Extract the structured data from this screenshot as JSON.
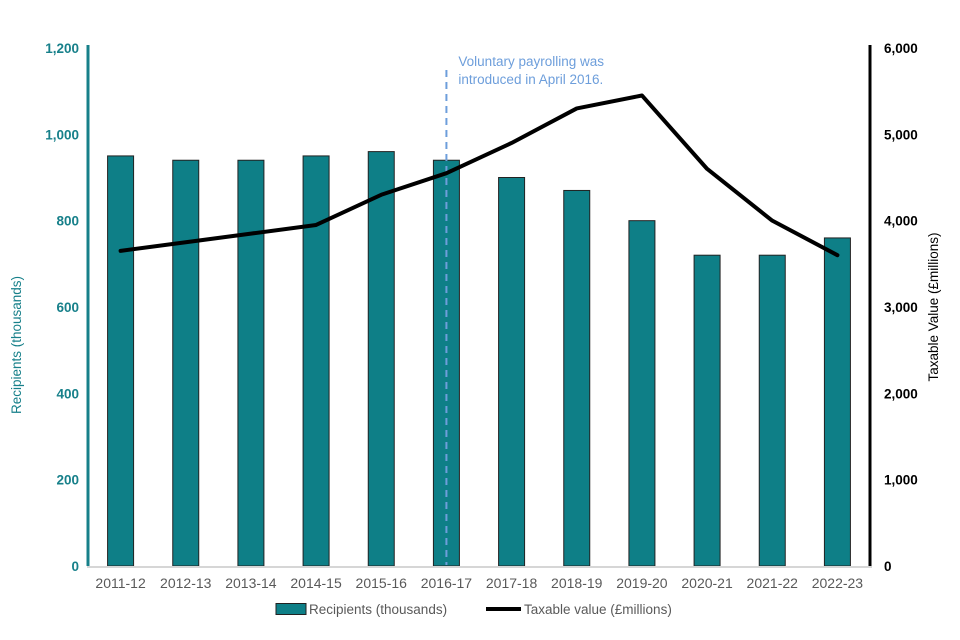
{
  "annotation": {
    "line1": "Voluntary payrolling was",
    "line2": "introduced in April 2016.",
    "color": "#6D9EDB",
    "marker_year": "2016-17"
  },
  "left_axis": {
    "title": "Recipients (thousands)",
    "color": "#17808A",
    "ticks": [
      "0",
      "200",
      "400",
      "600",
      "800",
      "1,000",
      "1,200"
    ]
  },
  "right_axis": {
    "title": "Taxable Value (£millions)",
    "color": "#000000",
    "ticks": [
      "0",
      "1,000",
      "2,000",
      "3,000",
      "4,000",
      "5,000",
      "6,000"
    ]
  },
  "legend": {
    "items": [
      {
        "label": "Recipients (thousands)",
        "swatch": "bar",
        "color": "#0E7F87"
      },
      {
        "label": "Taxable value (£millions)",
        "swatch": "line",
        "color": "#000000"
      }
    ]
  },
  "colors": {
    "bar_fill": "#0E7F87",
    "bar_border": "#222222",
    "line": "#000000",
    "x_label_gray": "#595959",
    "baseline_gray": "#D6D6D6",
    "dashed_line_blue": "#6D9EDB"
  },
  "chart_data": {
    "type": "bar",
    "subtype": "bar+line combo, dual axis",
    "categories": [
      "2011-12",
      "2012-13",
      "2013-14",
      "2014-15",
      "2015-16",
      "2016-17",
      "2017-18",
      "2018-19",
      "2019-20",
      "2020-21",
      "2021-22",
      "2022-23"
    ],
    "series": [
      {
        "name": "Recipients (thousands)",
        "type": "bar",
        "axis": "left",
        "values": [
          950,
          940,
          940,
          950,
          960,
          940,
          900,
          870,
          800,
          720,
          720,
          760
        ]
      },
      {
        "name": "Taxable value (£millions)",
        "type": "line",
        "axis": "right",
        "values": [
          3650,
          3750,
          3850,
          3950,
          4300,
          4550,
          4900,
          5300,
          5450,
          4600,
          4000,
          3600
        ]
      }
    ],
    "title": "",
    "xlabel": "",
    "left_ylabel": "Recipients (thousands)",
    "right_ylabel": "Taxable Value (£millions)",
    "left_ylim": [
      0,
      1200
    ],
    "right_ylim": [
      0,
      6000
    ],
    "grid": false,
    "legend_position": "bottom",
    "annotation": "Voluntary payrolling was introduced in April 2016.",
    "annotation_at": "2016-17"
  }
}
